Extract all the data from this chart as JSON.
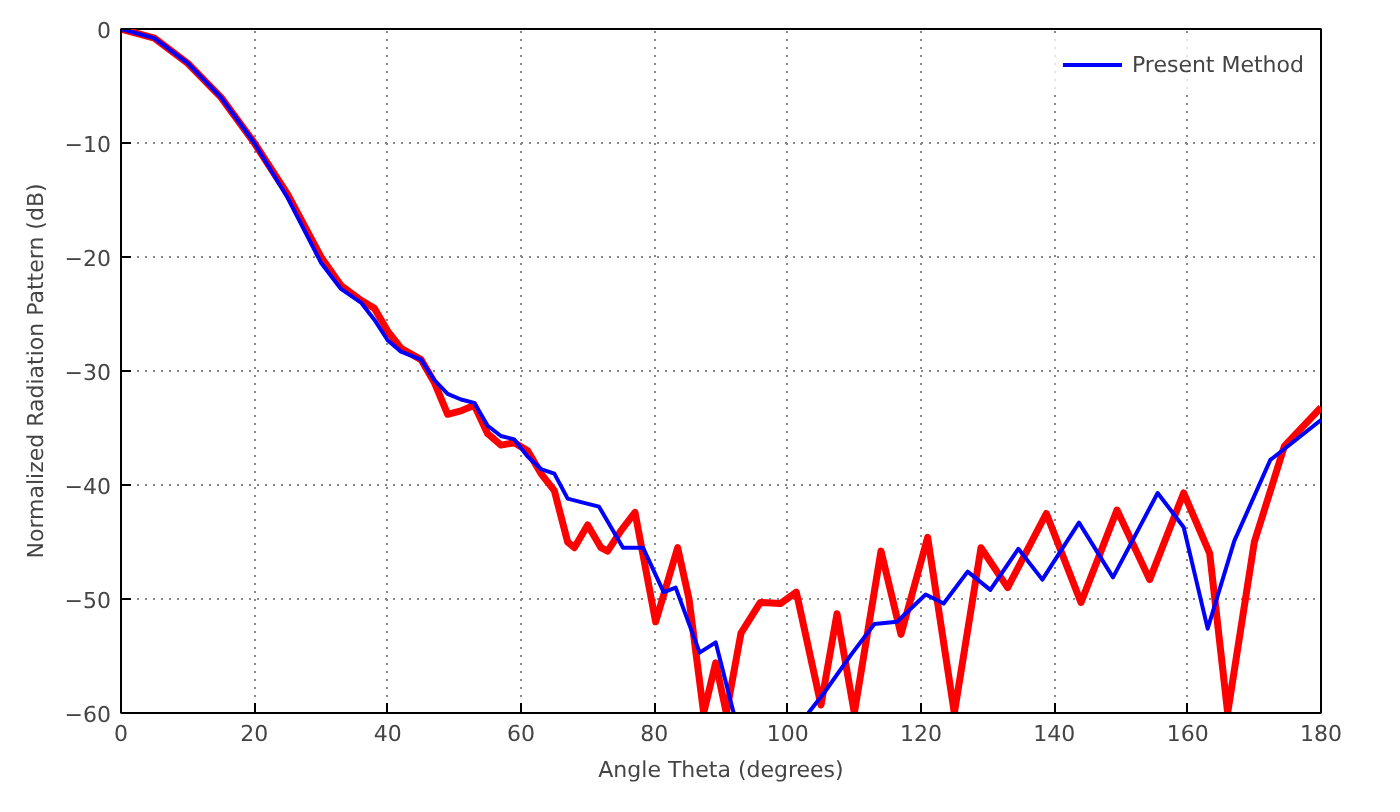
{
  "chart_data": {
    "type": "line",
    "xlabel": "Angle Theta (degrees)",
    "ylabel": "Normalized Radiation Pattern (dB)",
    "xlim": [
      0,
      180
    ],
    "xticks": [
      0,
      20,
      40,
      60,
      80,
      100,
      120,
      140,
      160,
      180
    ],
    "ylim": [
      -60,
      0
    ],
    "yticks": [
      -60,
      -50,
      -40,
      -30,
      -20,
      -10,
      0
    ],
    "grid": true,
    "legend": "top right",
    "line_style": "solid",
    "marker": "none",
    "series": [
      {
        "color": "#ff0000",
        "x": [
          0,
          5,
          10,
          15,
          20,
          25,
          30,
          33,
          36,
          38,
          40,
          42,
          45,
          47,
          49,
          51,
          53,
          55,
          57,
          59,
          61,
          63,
          65,
          67,
          68,
          70,
          72,
          73,
          75,
          77.1,
          80.2,
          83.5,
          85.2,
          87.4,
          89.2,
          90.8,
          93,
          95.9,
          98.9,
          101.3,
          105,
          107.4,
          110,
          114,
          117,
          121,
          125,
          129,
          133,
          138.8,
          144,
          149.4,
          154.3,
          159.4,
          163.3,
          166,
          170,
          174.5,
          180
        ],
        "values": [
          0,
          -0.8,
          -3,
          -6,
          -10,
          -14.5,
          -20,
          -22.5,
          -23.8,
          -24.5,
          -26.5,
          -28,
          -29,
          -31,
          -33.8,
          -33.5,
          -33,
          -35.5,
          -36.5,
          -36.3,
          -37,
          -39,
          -40.5,
          -45,
          -45.5,
          -43.5,
          -45.5,
          -45.8,
          -44,
          -42.4,
          -52,
          -45.5,
          -50,
          -60,
          -55.6,
          -60,
          -53,
          -50.3,
          -50.4,
          -49.4,
          -59.3,
          -51.3,
          -60,
          -45.8,
          -53.1,
          -44.6,
          -60,
          -45.5,
          -49,
          -42.5,
          -50.3,
          -42.2,
          -48.3,
          -40.7,
          -46,
          -60,
          -45,
          -36.6,
          -33.2
        ]
      },
      {
        "name": "Present Method",
        "color": "#0000ff",
        "x": [
          0,
          5,
          10,
          15,
          20,
          25,
          30,
          33,
          36,
          38,
          40,
          42,
          45,
          47,
          49,
          51,
          53,
          55,
          57,
          59,
          61,
          63,
          65,
          67,
          69,
          71.7,
          75.3,
          78.3,
          81.4,
          83.2,
          86.8,
          89.2,
          91.9,
          97,
          103.1,
          105.5,
          109.5,
          113,
          116.4,
          120.7,
          123.4,
          127,
          130.4,
          134.6,
          138.2,
          143.7,
          148.8,
          155.5,
          159.4,
          163,
          167,
          172.4,
          180
        ],
        "values": [
          0,
          -0.8,
          -3,
          -6,
          -10,
          -14.8,
          -20.5,
          -22.8,
          -24,
          -25.5,
          -27.3,
          -28.3,
          -29,
          -30.8,
          -32,
          -32.5,
          -32.8,
          -34.8,
          -35.7,
          -36,
          -37.5,
          -38.6,
          -39,
          -41.2,
          -41.5,
          -41.9,
          -45.5,
          -45.5,
          -49.4,
          -49,
          -54.7,
          -53.8,
          -60,
          null,
          -60,
          -58.2,
          -54.9,
          -52.2,
          -52,
          -49.6,
          -50.4,
          -47.6,
          -49.2,
          -45.6,
          -48.3,
          -43.3,
          -48.1,
          -40.7,
          -43.7,
          -52.6,
          -44.9,
          -37.8,
          -34.3
        ]
      }
    ]
  }
}
